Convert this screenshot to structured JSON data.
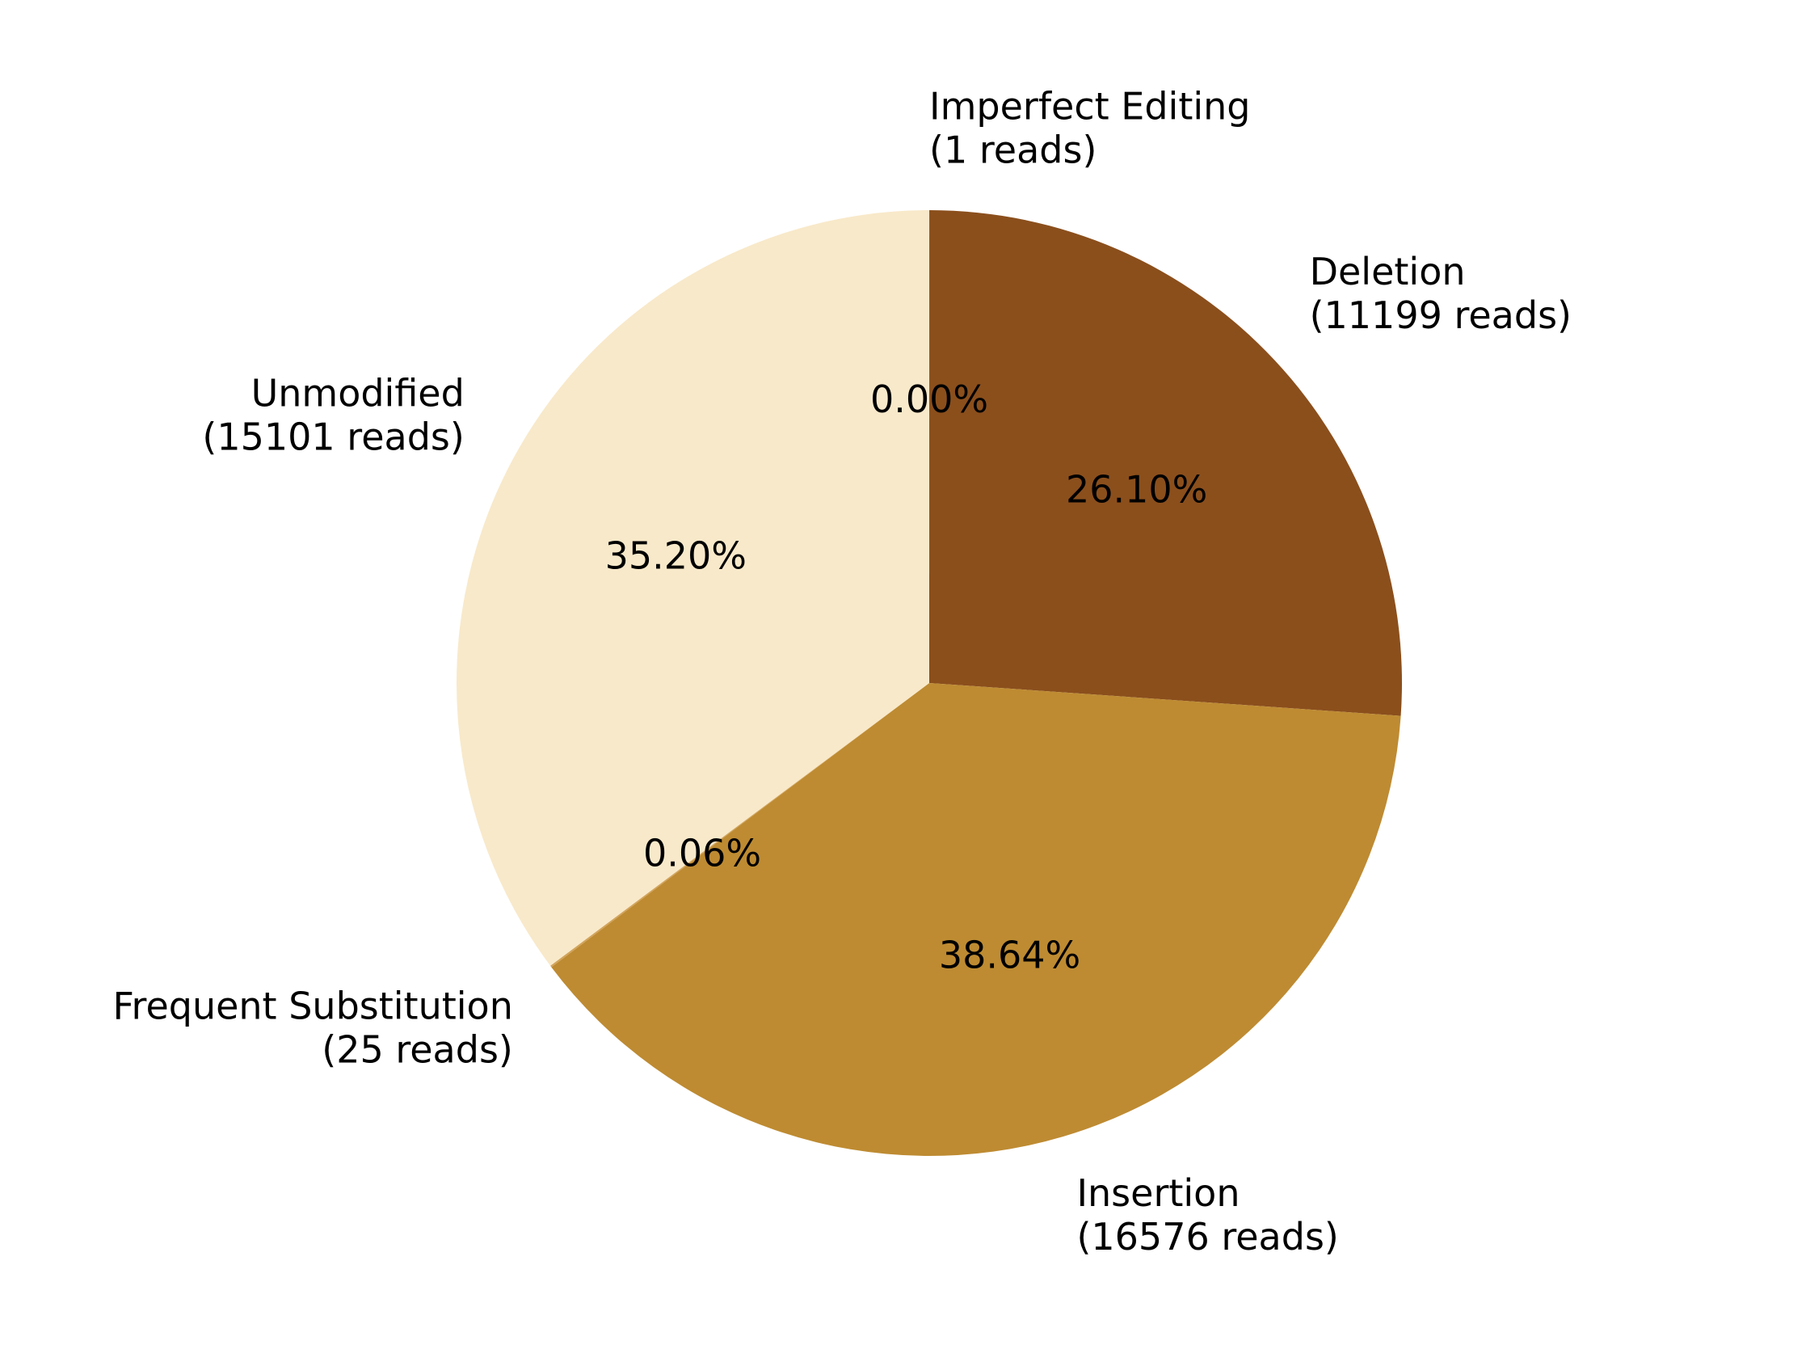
{
  "chart_data": {
    "type": "pie",
    "start_angle_deg": 90,
    "direction": "clockwise",
    "slices": [
      {
        "label": "Imperfect Editing",
        "reads_label": "(1 reads)",
        "reads": 1,
        "percent_label": "0.00%",
        "color": "#A0522D"
      },
      {
        "label": "Deletion",
        "reads_label": "(11199 reads)",
        "reads": 11199,
        "percent_label": "26.10%",
        "color": "#8B4F1C"
      },
      {
        "label": "Insertion",
        "reads_label": "(16576 reads)",
        "reads": 16576,
        "percent_label": "38.64%",
        "color": "#BE8B32"
      },
      {
        "label": "Frequent Substitution",
        "reads_label": "(25 reads)",
        "reads": 25,
        "percent_label": "0.06%",
        "color": "#D2A35A"
      },
      {
        "label": "Unmodified",
        "reads_label": "(15101 reads)",
        "reads": 15101,
        "percent_label": "35.20%",
        "color": "#F8E9CA"
      }
    ]
  }
}
